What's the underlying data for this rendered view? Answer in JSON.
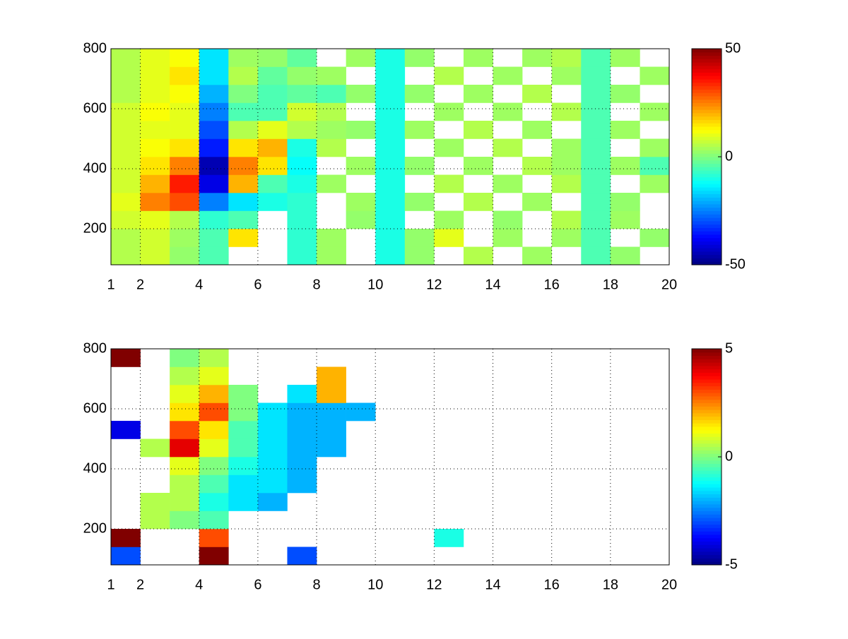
{
  "chart_data": [
    {
      "type": "heatmap",
      "colormap": "jet",
      "grid": true,
      "xbins": [
        1,
        2,
        3,
        4,
        5,
        6,
        7,
        8,
        9,
        10,
        11,
        12,
        13,
        14,
        15,
        16,
        17,
        18,
        19,
        20
      ],
      "ybins": [
        80,
        140,
        200,
        260,
        320,
        380,
        440,
        500,
        560,
        620,
        680,
        740,
        800
      ],
      "xlim": [
        1,
        20
      ],
      "xticks": [
        1,
        2,
        4,
        6,
        8,
        10,
        12,
        14,
        16,
        18,
        20
      ],
      "ylim": [
        80,
        800
      ],
      "yticks": [
        200,
        400,
        600,
        800
      ],
      "clim": [
        -50,
        50
      ],
      "cticks": [
        -50,
        0,
        50
      ],
      "values": [
        [
          5,
          8,
          2,
          -5,
          null,
          null,
          -8,
          3,
          null,
          -10,
          2,
          null,
          5,
          null,
          3,
          null,
          -5,
          2,
          null
        ],
        [
          5,
          8,
          3,
          -5,
          15,
          null,
          -8,
          3,
          null,
          -10,
          2,
          10,
          null,
          3,
          null,
          3,
          -5,
          null,
          2
        ],
        [
          8,
          10,
          5,
          -8,
          -5,
          null,
          -8,
          null,
          2,
          -10,
          null,
          3,
          null,
          2,
          null,
          5,
          -5,
          3,
          null
        ],
        [
          10,
          25,
          30,
          -25,
          -15,
          -10,
          -8,
          null,
          3,
          -10,
          2,
          null,
          5,
          null,
          3,
          null,
          -5,
          2,
          null
        ],
        [
          8,
          20,
          35,
          -40,
          20,
          -5,
          -10,
          3,
          null,
          -10,
          null,
          5,
          null,
          3,
          null,
          5,
          -5,
          null,
          3
        ],
        [
          8,
          15,
          25,
          -45,
          25,
          15,
          -12,
          null,
          3,
          -10,
          2,
          null,
          3,
          null,
          5,
          3,
          -5,
          3,
          -5
        ],
        [
          8,
          12,
          15,
          -35,
          15,
          20,
          -10,
          5,
          null,
          -10,
          null,
          3,
          null,
          5,
          null,
          3,
          -5,
          null,
          3
        ],
        [
          8,
          10,
          10,
          -30,
          5,
          10,
          5,
          3,
          2,
          -10,
          3,
          null,
          5,
          null,
          3,
          null,
          -5,
          3,
          null
        ],
        [
          8,
          12,
          10,
          -25,
          -5,
          -5,
          8,
          5,
          null,
          -10,
          null,
          3,
          null,
          3,
          null,
          5,
          -5,
          null,
          3
        ],
        [
          5,
          10,
          12,
          -20,
          0,
          -5,
          -3,
          -5,
          2,
          -10,
          2,
          null,
          3,
          null,
          5,
          null,
          -5,
          2,
          null
        ],
        [
          5,
          10,
          15,
          -15,
          5,
          -3,
          2,
          3,
          null,
          -10,
          null,
          5,
          null,
          3,
          null,
          3,
          -5,
          null,
          3
        ],
        [
          5,
          10,
          12,
          -15,
          3,
          2,
          -3,
          null,
          3,
          -10,
          2,
          null,
          3,
          null,
          3,
          5,
          -5,
          3,
          null
        ]
      ]
    },
    {
      "type": "heatmap",
      "colormap": "jet",
      "grid": true,
      "xbins": [
        1,
        2,
        3,
        4,
        5,
        6,
        7,
        8,
        9,
        10,
        11,
        12,
        13,
        14,
        15,
        16,
        17,
        18,
        19,
        20
      ],
      "ybins": [
        80,
        140,
        200,
        260,
        320,
        380,
        440,
        500,
        560,
        620,
        680,
        740,
        800
      ],
      "xlim": [
        1,
        20
      ],
      "xticks": [
        1,
        2,
        4,
        6,
        8,
        10,
        12,
        14,
        16,
        18,
        20
      ],
      "ylim": [
        80,
        800
      ],
      "yticks": [
        200,
        400,
        600,
        800
      ],
      "clim": [
        -5,
        5
      ],
      "cticks": [
        -5,
        0,
        5
      ],
      "values": [
        [
          -3,
          null,
          null,
          5,
          null,
          null,
          -3,
          null,
          null,
          null,
          null,
          null,
          null,
          null,
          null,
          null,
          null,
          null,
          null
        ],
        [
          5,
          null,
          null,
          3,
          null,
          null,
          null,
          null,
          null,
          null,
          null,
          -1,
          null,
          null,
          null,
          null,
          null,
          null,
          null
        ],
        [
          null,
          0.5,
          0,
          -0.5,
          null,
          null,
          null,
          null,
          null,
          null,
          null,
          null,
          null,
          null,
          null,
          null,
          null,
          null,
          null
        ],
        [
          null,
          0.5,
          0.5,
          -1,
          -1.5,
          -2,
          null,
          null,
          null,
          null,
          null,
          null,
          null,
          null,
          null,
          null,
          null,
          null,
          null
        ],
        [
          null,
          null,
          0.5,
          -0.5,
          -1.5,
          -1.5,
          -2,
          null,
          null,
          null,
          null,
          null,
          null,
          null,
          null,
          null,
          null,
          null,
          null
        ],
        [
          null,
          null,
          1,
          0,
          -1,
          -1.5,
          -2,
          null,
          null,
          null,
          null,
          null,
          null,
          null,
          null,
          null,
          null,
          null,
          null
        ],
        [
          null,
          0.5,
          4,
          1,
          -0.5,
          -1.5,
          -2,
          -2,
          null,
          null,
          null,
          null,
          null,
          null,
          null,
          null,
          null,
          null,
          null
        ],
        [
          -4,
          null,
          3,
          1.5,
          -0.5,
          -1.5,
          -2,
          -2,
          null,
          null,
          null,
          null,
          null,
          null,
          null,
          null,
          null,
          null,
          null
        ],
        [
          null,
          null,
          1.5,
          3,
          0,
          -1.5,
          -2,
          -2,
          -2,
          null,
          null,
          null,
          null,
          null,
          null,
          null,
          null,
          null,
          null
        ],
        [
          null,
          null,
          1,
          2,
          0,
          null,
          -1.5,
          2,
          null,
          null,
          null,
          null,
          null,
          null,
          null,
          null,
          null,
          null,
          null
        ],
        [
          null,
          null,
          0.5,
          1,
          null,
          null,
          null,
          2,
          null,
          null,
          null,
          null,
          null,
          null,
          null,
          null,
          null,
          null,
          null
        ],
        [
          5,
          null,
          0,
          0.5,
          null,
          null,
          null,
          null,
          null,
          null,
          null,
          null,
          null,
          null,
          null,
          null,
          null,
          null,
          null
        ]
      ]
    }
  ]
}
